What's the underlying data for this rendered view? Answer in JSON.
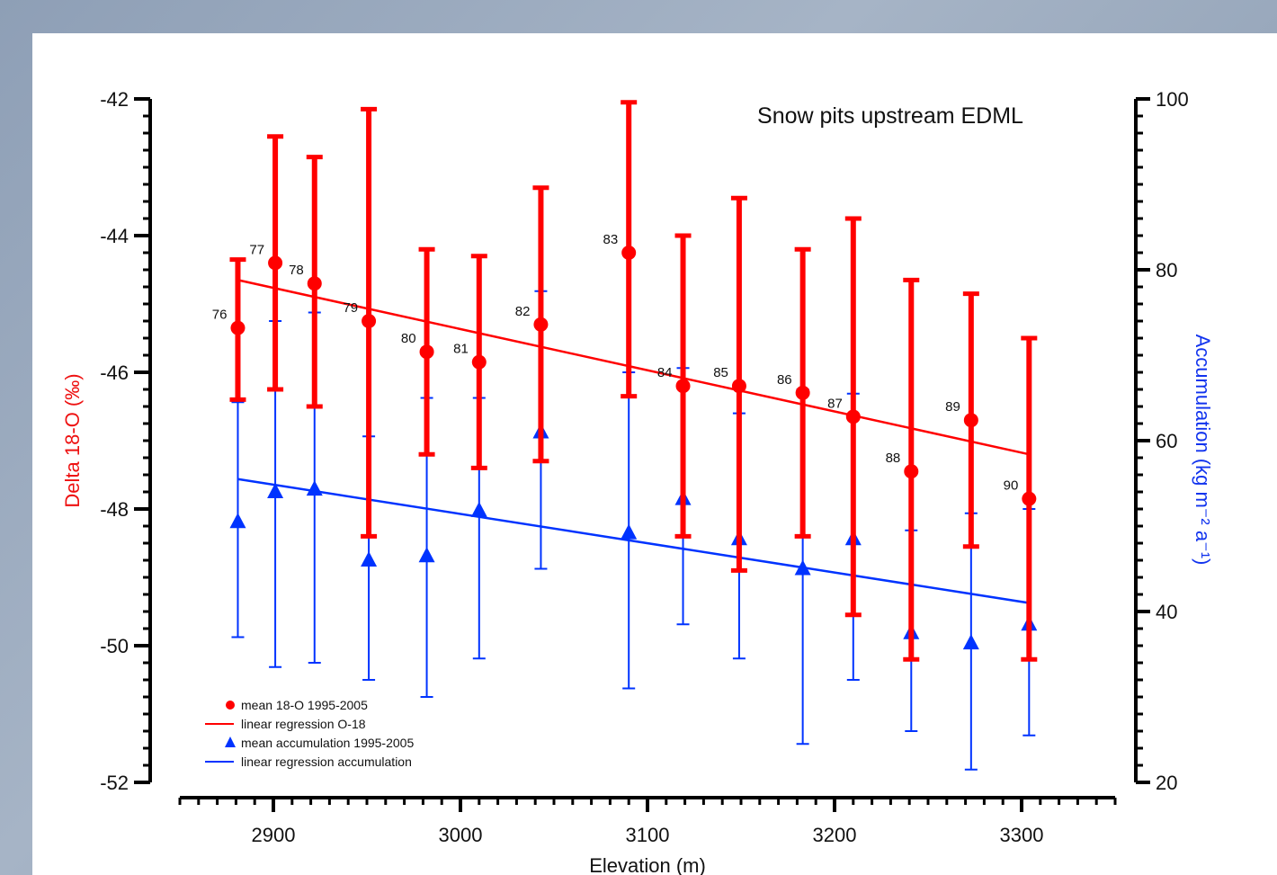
{
  "chart_data": {
    "type": "scatter",
    "title": "Snow pits upstream EDML",
    "xlabel": "Elevation (m)",
    "ylabel_left": "Delta 18-O (‰)",
    "ylabel_right": "Accumulation (kg m⁻² a⁻¹)",
    "xlim": [
      2850,
      3350
    ],
    "ylim_left": [
      -52,
      -42
    ],
    "ylim_right": [
      20,
      100
    ],
    "x_ticks": [
      "2900",
      "3000",
      "3100",
      "3200",
      "3300"
    ],
    "y_left_ticks": [
      "-42",
      "-44",
      "-46",
      "-48",
      "-50",
      "-52"
    ],
    "y_right_ticks": [
      "100",
      "80",
      "60",
      "40",
      "20"
    ],
    "grid": false,
    "legend_position": "bottom-left",
    "series": [
      {
        "name": "mean 18-O 1995-2005",
        "axis": "left",
        "color": "#ff0000",
        "marker": "circle",
        "points": [
          {
            "label": "76",
            "x": 2881,
            "y": -45.35,
            "lo": -46.4,
            "hi": -44.35
          },
          {
            "label": "77",
            "x": 2901,
            "y": -44.4,
            "lo": -46.25,
            "hi": -42.55
          },
          {
            "label": "78",
            "x": 2922,
            "y": -44.7,
            "lo": -46.5,
            "hi": -42.85
          },
          {
            "label": "79",
            "x": 2951,
            "y": -45.25,
            "lo": -48.4,
            "hi": -42.15
          },
          {
            "label": "80",
            "x": 2982,
            "y": -45.7,
            "lo": -47.2,
            "hi": -44.2
          },
          {
            "label": "81",
            "x": 3010,
            "y": -45.85,
            "lo": -47.4,
            "hi": -44.3
          },
          {
            "label": "82",
            "x": 3043,
            "y": -45.3,
            "lo": -47.3,
            "hi": -43.3
          },
          {
            "label": "83",
            "x": 3090,
            "y": -44.25,
            "lo": -46.35,
            "hi": -42.05
          },
          {
            "label": "84",
            "x": 3119,
            "y": -46.2,
            "lo": -48.4,
            "hi": -44.0
          },
          {
            "label": "85",
            "x": 3149,
            "y": -46.2,
            "lo": -48.9,
            "hi": -43.45
          },
          {
            "label": "86",
            "x": 3183,
            "y": -46.3,
            "lo": -48.4,
            "hi": -44.2
          },
          {
            "label": "87",
            "x": 3210,
            "y": -46.65,
            "lo": -49.55,
            "hi": -43.75
          },
          {
            "label": "88",
            "x": 3241,
            "y": -47.45,
            "lo": -50.2,
            "hi": -44.65
          },
          {
            "label": "89",
            "x": 3273,
            "y": -46.7,
            "lo": -48.55,
            "hi": -44.85
          },
          {
            "label": "90",
            "x": 3304,
            "y": -47.85,
            "lo": -50.2,
            "hi": -45.5
          }
        ]
      },
      {
        "name": "mean accumulation 1995-2005",
        "axis": "right",
        "color": "#0033ff",
        "marker": "triangle",
        "points": [
          {
            "x": 2881,
            "y": 50.5,
            "lo": 37,
            "hi": 64.5
          },
          {
            "x": 2901,
            "y": 54,
            "lo": 33.5,
            "hi": 74
          },
          {
            "x": 2922,
            "y": 54.3,
            "lo": 34,
            "hi": 75
          },
          {
            "x": 2951,
            "y": 46,
            "lo": 32,
            "hi": 60.5
          },
          {
            "x": 2982,
            "y": 46.5,
            "lo": 30,
            "hi": 65
          },
          {
            "x": 3010,
            "y": 51.8,
            "lo": 34.5,
            "hi": 65
          },
          {
            "x": 3043,
            "y": 61,
            "lo": 45,
            "hi": 77.5
          },
          {
            "x": 3090,
            "y": 49.2,
            "lo": 31,
            "hi": 68
          },
          {
            "x": 3119,
            "y": 53.2,
            "lo": 38.5,
            "hi": 68.5
          },
          {
            "x": 3149,
            "y": 48.5,
            "lo": 34.5,
            "hi": 63.2
          },
          {
            "x": 3183,
            "y": 45,
            "lo": 24.5,
            "hi": 66
          },
          {
            "x": 3210,
            "y": 48.5,
            "lo": 32,
            "hi": 65.5
          },
          {
            "x": 3241,
            "y": 37.5,
            "lo": 26,
            "hi": 49.5
          },
          {
            "x": 3273,
            "y": 36.3,
            "lo": 21.5,
            "hi": 51.5
          },
          {
            "x": 3304,
            "y": 38.5,
            "lo": 25.5,
            "hi": 52
          }
        ]
      }
    ],
    "regressions": [
      {
        "name": "linear regression O-18",
        "axis": "left",
        "color": "#ff0000",
        "x": [
          2881,
          3304
        ],
        "y": [
          -44.65,
          -47.2
        ]
      },
      {
        "name": "linear regression accumulation",
        "axis": "right",
        "color": "#0033ff",
        "x": [
          2881,
          3304
        ],
        "y": [
          55.5,
          41
        ]
      }
    ],
    "legend": [
      {
        "label": "mean 18-O 1995-2005",
        "symbol": "circle",
        "color": "#ff0000"
      },
      {
        "label": "linear regression O-18",
        "symbol": "line",
        "color": "#ff0000"
      },
      {
        "label": "mean accumulation 1995-2005",
        "symbol": "triangle",
        "color": "#0033ff"
      },
      {
        "label": "linear regression accumulation",
        "symbol": "line",
        "color": "#0033ff"
      }
    ]
  }
}
